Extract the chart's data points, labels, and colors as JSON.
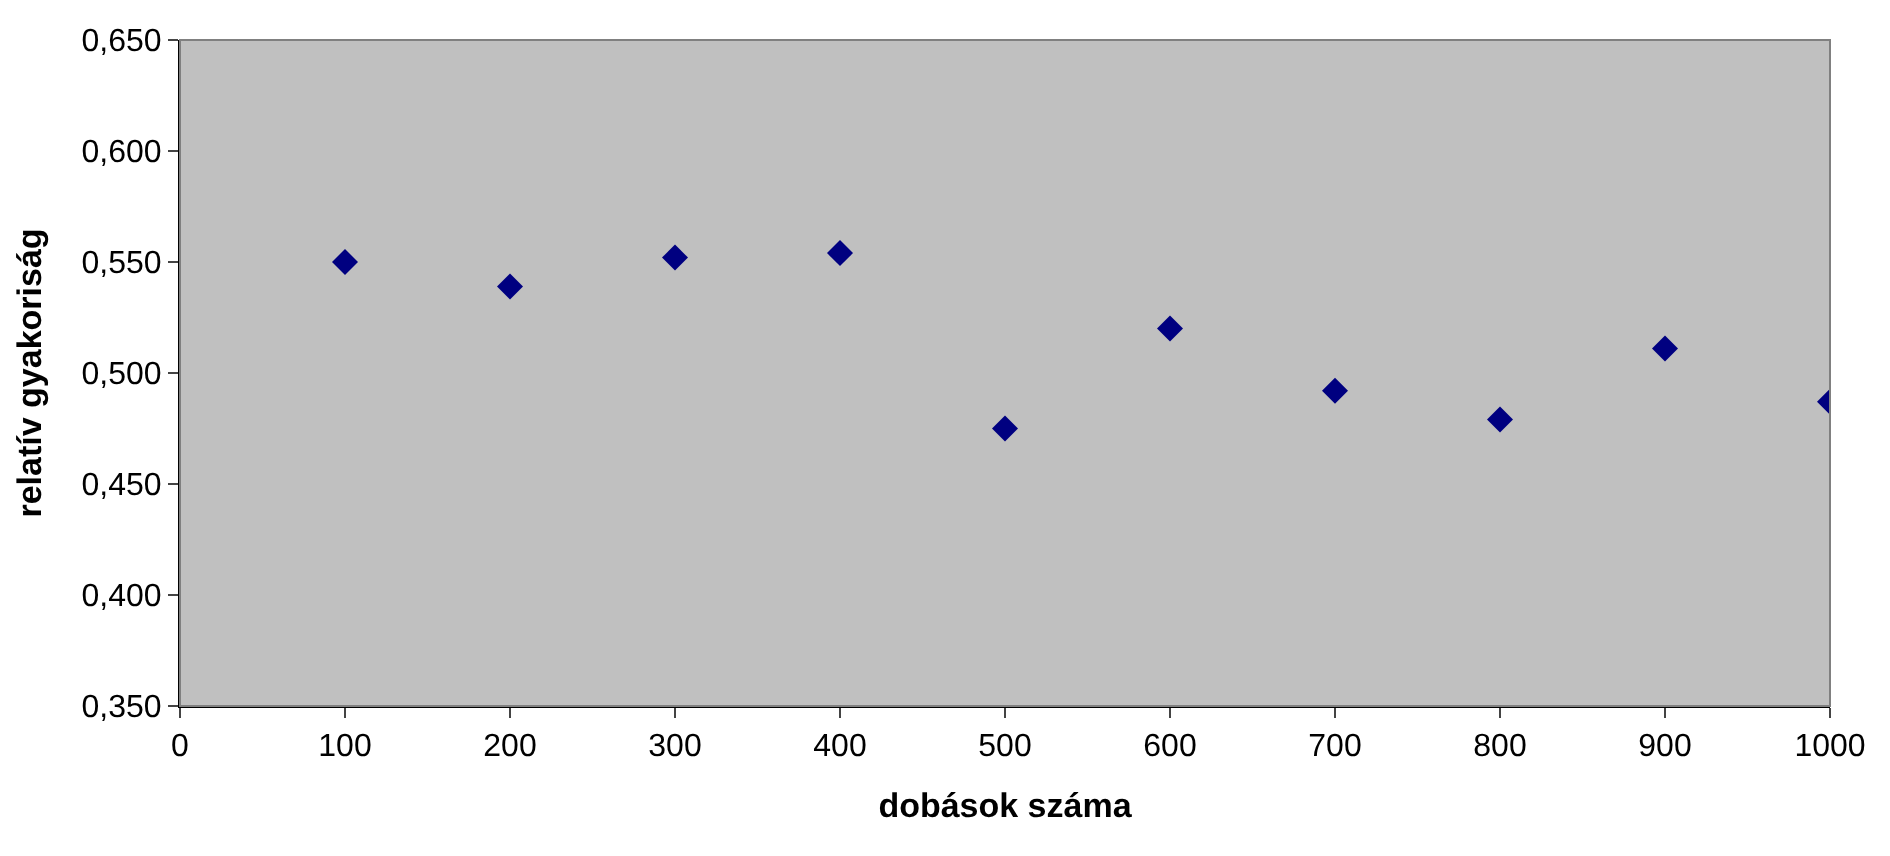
{
  "chart_data": {
    "type": "scatter",
    "xlabel": "dobások száma",
    "ylabel": "relatív gyakoriság",
    "x": [
      100,
      200,
      300,
      400,
      500,
      600,
      700,
      800,
      900,
      1000
    ],
    "series": [
      {
        "color": "#000080",
        "values": [
          0.55,
          0.539,
          0.552,
          0.554,
          0.475,
          0.52,
          0.492,
          0.479,
          0.511,
          0.487
        ]
      }
    ],
    "xlim": [
      0,
      1000
    ],
    "xticks": [
      0,
      100,
      200,
      300,
      400,
      500,
      600,
      700,
      800,
      900,
      1000
    ],
    "ylim": [
      0.35,
      0.65
    ],
    "yticks": [
      {
        "value": 0.35,
        "label": "0,350"
      },
      {
        "value": 0.4,
        "label": "0,400"
      },
      {
        "value": 0.45,
        "label": "0,450"
      },
      {
        "value": 0.5,
        "label": "0,500"
      },
      {
        "value": 0.55,
        "label": "0,550"
      },
      {
        "value": 0.6,
        "label": "0,600"
      },
      {
        "value": 0.65,
        "label": "0,650"
      }
    ],
    "marker": "diamond",
    "grid": false,
    "legend": false
  }
}
